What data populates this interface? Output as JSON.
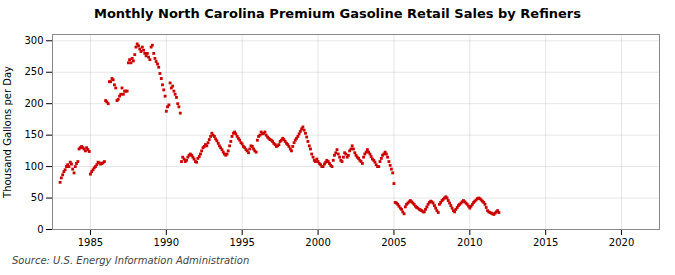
{
  "chart_data": {
    "type": "scatter",
    "title": "Monthly North Carolina Premium Gasoline Retail Sales by Refiners",
    "ylabel": "Thousand Gallons per Day",
    "source": "Source: U.S. Energy Information Administration",
    "color": "#cc0000",
    "marker": "square",
    "grid": true,
    "xlim": [
      1982.5,
      2022.5
    ],
    "ylim": [
      0,
      310
    ],
    "xticks": [
      1985,
      1990,
      1995,
      2000,
      2005,
      2010,
      2015,
      2020
    ],
    "yticks": [
      0,
      50,
      100,
      150,
      200,
      250,
      300
    ],
    "x": [
      1983.0,
      1983.08,
      1983.17,
      1983.25,
      1983.33,
      1983.42,
      1983.5,
      1983.58,
      1983.67,
      1983.75,
      1983.83,
      1983.92,
      1984.0,
      1984.08,
      1984.17,
      1984.25,
      1984.33,
      1984.42,
      1984.5,
      1984.58,
      1984.67,
      1984.75,
      1984.83,
      1984.92,
      1985.0,
      1985.08,
      1985.17,
      1985.25,
      1985.33,
      1985.42,
      1985.5,
      1985.58,
      1985.67,
      1985.75,
      1985.83,
      1985.92,
      1986.0,
      1986.08,
      1986.17,
      1986.25,
      1986.33,
      1986.42,
      1986.5,
      1986.58,
      1986.67,
      1986.75,
      1986.83,
      1986.92,
      1987.0,
      1987.08,
      1987.17,
      1987.25,
      1987.33,
      1987.42,
      1987.5,
      1987.58,
      1987.67,
      1987.75,
      1987.83,
      1987.92,
      1988.0,
      1988.08,
      1988.17,
      1988.25,
      1988.33,
      1988.42,
      1988.5,
      1988.58,
      1988.67,
      1988.75,
      1988.83,
      1988.92,
      1989.0,
      1989.08,
      1989.17,
      1989.25,
      1989.33,
      1989.42,
      1989.5,
      1989.58,
      1989.67,
      1989.75,
      1989.83,
      1989.92,
      1990.0,
      1990.08,
      1990.17,
      1990.25,
      1990.33,
      1990.42,
      1990.5,
      1990.58,
      1990.67,
      1990.75,
      1990.83,
      1990.92,
      1991.0,
      1991.08,
      1991.17,
      1991.25,
      1991.33,
      1991.42,
      1991.5,
      1991.58,
      1991.67,
      1991.75,
      1991.83,
      1991.92,
      1992.0,
      1992.08,
      1992.17,
      1992.25,
      1992.33,
      1992.42,
      1992.5,
      1992.58,
      1992.67,
      1992.75,
      1992.83,
      1992.92,
      1993.0,
      1993.08,
      1993.17,
      1993.25,
      1993.33,
      1993.42,
      1993.5,
      1993.58,
      1993.67,
      1993.75,
      1993.83,
      1993.92,
      1994.0,
      1994.08,
      1994.17,
      1994.25,
      1994.33,
      1994.42,
      1994.5,
      1994.58,
      1994.67,
      1994.75,
      1994.83,
      1994.92,
      1995.0,
      1995.08,
      1995.17,
      1995.25,
      1995.33,
      1995.42,
      1995.5,
      1995.58,
      1995.67,
      1995.75,
      1995.83,
      1995.92,
      1996.0,
      1996.08,
      1996.17,
      1996.25,
      1996.33,
      1996.42,
      1996.5,
      1996.58,
      1996.67,
      1996.75,
      1996.83,
      1996.92,
      1997.0,
      1997.08,
      1997.17,
      1997.25,
      1997.33,
      1997.42,
      1997.5,
      1997.58,
      1997.67,
      1997.75,
      1997.83,
      1997.92,
      1998.0,
      1998.08,
      1998.17,
      1998.25,
      1998.33,
      1998.42,
      1998.5,
      1998.58,
      1998.67,
      1998.75,
      1998.83,
      1998.92,
      1999.0,
      1999.08,
      1999.17,
      1999.25,
      1999.33,
      1999.42,
      1999.5,
      1999.58,
      1999.67,
      1999.75,
      1999.83,
      1999.92,
      2000.0,
      2000.08,
      2000.17,
      2000.25,
      2000.33,
      2000.42,
      2000.5,
      2000.58,
      2000.67,
      2000.75,
      2000.83,
      2000.92,
      2001.0,
      2001.08,
      2001.17,
      2001.25,
      2001.33,
      2001.42,
      2001.5,
      2001.58,
      2001.67,
      2001.75,
      2001.83,
      2001.92,
      2002.0,
      2002.08,
      2002.17,
      2002.25,
      2002.33,
      2002.42,
      2002.5,
      2002.58,
      2002.67,
      2002.75,
      2002.83,
      2002.92,
      2003.0,
      2003.08,
      2003.17,
      2003.25,
      2003.33,
      2003.42,
      2003.5,
      2003.58,
      2003.67,
      2003.75,
      2003.83,
      2003.92,
      2004.0,
      2004.08,
      2004.17,
      2004.25,
      2004.33,
      2004.42,
      2004.5,
      2004.58,
      2004.67,
      2004.75,
      2004.83,
      2004.92,
      2005.0,
      2005.08,
      2005.17,
      2005.25,
      2005.33,
      2005.42,
      2005.5,
      2005.58,
      2005.67,
      2005.75,
      2005.83,
      2005.92,
      2006.0,
      2006.08,
      2006.17,
      2006.25,
      2006.33,
      2006.42,
      2006.5,
      2006.58,
      2006.67,
      2006.75,
      2006.83,
      2006.92,
      2007.0,
      2007.08,
      2007.17,
      2007.25,
      2007.33,
      2007.42,
      2007.5,
      2007.58,
      2007.67,
      2007.75,
      2007.83,
      2007.92,
      2008.0,
      2008.08,
      2008.17,
      2008.25,
      2008.33,
      2008.42,
      2008.5,
      2008.58,
      2008.67,
      2008.75,
      2008.83,
      2008.92,
      2009.0,
      2009.08,
      2009.17,
      2009.25,
      2009.33,
      2009.42,
      2009.5,
      2009.58,
      2009.67,
      2009.75,
      2009.83,
      2009.92,
      2010.0,
      2010.08,
      2010.17,
      2010.25,
      2010.33,
      2010.42,
      2010.5,
      2010.58,
      2010.67,
      2010.75,
      2010.83,
      2010.92,
      2011.0,
      2011.08,
      2011.17,
      2011.25,
      2011.33,
      2011.42,
      2011.5,
      2011.58,
      2011.67,
      2011.75,
      2011.83,
      2011.92
    ],
    "values": [
      75,
      82,
      87,
      92,
      95,
      100,
      103,
      100,
      107,
      104,
      96,
      90,
      100,
      105,
      108,
      128,
      130,
      132,
      130,
      128,
      125,
      130,
      127,
      124,
      88,
      92,
      95,
      98,
      100,
      103,
      107,
      106,
      104,
      105,
      106,
      108,
      205,
      203,
      200,
      235,
      235,
      240,
      238,
      230,
      225,
      205,
      207,
      212,
      215,
      225,
      215,
      220,
      220,
      220,
      265,
      270,
      265,
      272,
      268,
      278,
      290,
      295,
      292,
      287,
      283,
      290,
      285,
      280,
      276,
      280,
      274,
      270,
      290,
      293,
      280,
      272,
      267,
      263,
      258,
      248,
      240,
      230,
      222,
      212,
      188,
      195,
      198,
      233,
      225,
      228,
      220,
      215,
      210,
      200,
      195,
      185,
      108,
      115,
      112,
      108,
      110,
      115,
      118,
      120,
      118,
      115,
      112,
      108,
      107,
      113,
      116,
      120,
      125,
      130,
      132,
      135,
      133,
      138,
      143,
      148,
      153,
      150,
      148,
      144,
      141,
      137,
      133,
      130,
      127,
      123,
      120,
      118,
      120,
      125,
      133,
      140,
      148,
      153,
      155,
      152,
      148,
      145,
      142,
      138,
      136,
      132,
      130,
      127,
      125,
      122,
      128,
      133,
      132,
      128,
      125,
      123,
      142,
      148,
      150,
      155,
      152,
      153,
      155,
      150,
      147,
      145,
      143,
      142,
      140,
      137,
      135,
      132,
      133,
      135,
      140,
      142,
      145,
      143,
      140,
      137,
      135,
      132,
      128,
      125,
      132,
      138,
      142,
      145,
      148,
      152,
      156,
      160,
      163,
      158,
      153,
      147,
      140,
      133,
      128,
      120,
      115,
      110,
      108,
      112,
      108,
      105,
      103,
      100,
      100,
      104,
      107,
      110,
      108,
      105,
      102,
      100,
      110,
      118,
      122,
      127,
      120,
      115,
      110,
      108,
      115,
      122,
      120,
      115,
      118,
      125,
      128,
      133,
      128,
      122,
      118,
      115,
      113,
      110,
      108,
      105,
      115,
      120,
      123,
      127,
      123,
      120,
      116,
      112,
      110,
      107,
      103,
      100,
      100,
      108,
      113,
      118,
      120,
      123,
      120,
      115,
      108,
      102,
      96,
      90,
      73,
      43,
      42,
      40,
      37,
      34,
      32,
      28,
      25,
      36,
      40,
      42,
      44,
      46,
      44,
      42,
      40,
      37,
      35,
      34,
      32,
      31,
      30,
      28,
      28,
      32,
      36,
      40,
      43,
      45,
      44,
      42,
      38,
      34,
      30,
      27,
      40,
      43,
      46,
      48,
      50,
      52,
      50,
      46,
      42,
      38,
      34,
      30,
      28,
      32,
      35,
      38,
      40,
      42,
      44,
      46,
      44,
      42,
      40,
      37,
      34,
      37,
      40,
      43,
      45,
      47,
      49,
      50,
      49,
      47,
      45,
      43,
      40,
      35,
      30,
      28,
      27,
      26,
      25,
      24,
      26,
      28,
      30,
      27
    ]
  }
}
